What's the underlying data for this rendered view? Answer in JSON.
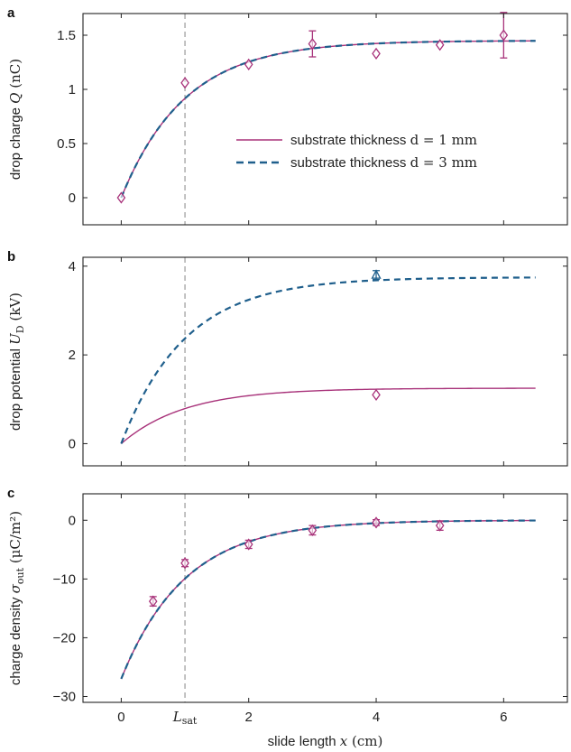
{
  "chart_data": [
    {
      "panel": "a",
      "type": "line",
      "ylabel_text": "drop charge",
      "ylabel_symbol": "Q",
      "ylabel_unit": "(nC)",
      "ylim": [
        -0.25,
        1.7
      ],
      "yticks": [
        0,
        0.5,
        1,
        1.5
      ],
      "ytick_labels": [
        "0",
        "0.5",
        "1",
        "1.5"
      ],
      "curves": [
        {
          "name": "substrate thickness d = 1 mm",
          "style": "solid",
          "color": "#a8327a",
          "amplitude": 1.45,
          "offset": 0
        },
        {
          "name": "substrate thickness d = 3 mm",
          "style": "dashed",
          "color": "#1f5f8c",
          "amplitude": 1.45,
          "offset": 0
        }
      ],
      "points": [
        {
          "x": 0,
          "y": 0.0,
          "err": 0,
          "color": "#a8327a"
        },
        {
          "x": 1,
          "y": 1.06,
          "err": 0,
          "color": "#a8327a"
        },
        {
          "x": 2,
          "y": 1.23,
          "err": 0,
          "color": "#a8327a"
        },
        {
          "x": 3,
          "y": 1.42,
          "err": 0.12,
          "color": "#a8327a"
        },
        {
          "x": 4,
          "y": 1.33,
          "err": 0,
          "color": "#a8327a"
        },
        {
          "x": 5,
          "y": 1.41,
          "err": 0,
          "color": "#a8327a"
        },
        {
          "x": 6,
          "y": 1.5,
          "err": 0.21,
          "color": "#a8327a"
        }
      ],
      "legend": {
        "placement": "center-right",
        "entries": [
          {
            "text": "substrate thickness ",
            "math": "d = 1 mm",
            "style": "solid",
            "color": "#a8327a"
          },
          {
            "text": "substrate thickness ",
            "math": "d = 3 mm",
            "style": "dashed",
            "color": "#1f5f8c"
          }
        ]
      }
    },
    {
      "panel": "b",
      "type": "line",
      "ylabel_text": "drop potential",
      "ylabel_symbol": "U",
      "ylabel_sub": "D",
      "ylabel_unit": "(kV)",
      "ylim": [
        -0.5,
        4.2
      ],
      "yticks": [
        0,
        2,
        4
      ],
      "ytick_labels": [
        "0",
        "2",
        "4"
      ],
      "curves": [
        {
          "name": "substrate thickness d = 1 mm",
          "style": "solid",
          "color": "#a8327a",
          "amplitude": 1.25,
          "offset": 0
        },
        {
          "name": "substrate thickness d = 3 mm",
          "style": "dashed",
          "color": "#1f5f8c",
          "amplitude": 3.75,
          "offset": 0
        }
      ],
      "points": [
        {
          "x": 4,
          "y": 1.1,
          "err": 0,
          "color": "#a8327a",
          "marker": "diamond"
        },
        {
          "x": 4,
          "y": 3.8,
          "err": 0.1,
          "color": "#1f5f8c",
          "marker": "triangle"
        }
      ]
    },
    {
      "panel": "c",
      "type": "line",
      "ylabel_text": "charge density",
      "ylabel_symbol": "σ",
      "ylabel_sub": "out",
      "ylabel_unit": "(μC/m²)",
      "ylim": [
        -31,
        4.5
      ],
      "yticks": [
        -30,
        -20,
        -10,
        0
      ],
      "ytick_labels": [
        "−30",
        "−20",
        "−10",
        "0"
      ],
      "curves": [
        {
          "name": "substrate thickness d = 1 mm",
          "style": "solid",
          "color": "#a8327a",
          "amplitude": 27,
          "offset": -27
        },
        {
          "name": "substrate thickness d = 3 mm",
          "style": "dashed",
          "color": "#1f5f8c",
          "amplitude": 27,
          "offset": -27
        }
      ],
      "points": [
        {
          "x": 0.5,
          "y": -13.8,
          "err": 0.8,
          "color": "#a8327a"
        },
        {
          "x": 1,
          "y": -7.3,
          "err": 0.6,
          "color": "#a8327a"
        },
        {
          "x": 2,
          "y": -4.1,
          "err": 0.7,
          "color": "#a8327a"
        },
        {
          "x": 3,
          "y": -1.7,
          "err": 0.8,
          "color": "#a8327a"
        },
        {
          "x": 4,
          "y": -0.4,
          "err": 0.5,
          "color": "#a8327a"
        },
        {
          "x": 5,
          "y": -0.9,
          "err": 0.8,
          "color": "#a8327a"
        }
      ]
    }
  ],
  "shared": {
    "xlim": [
      -0.6,
      7.0
    ],
    "xticks": [
      0,
      2,
      4,
      6
    ],
    "xtick_labels": [
      "0",
      "2",
      "4",
      "6"
    ],
    "xlabel_text": "slide length",
    "xlabel_symbol": "x",
    "xlabel_unit": "(cm)",
    "x_max_curve": 6.5,
    "decay_length": 1.0,
    "lsat_x": 1.0,
    "lsat_label": "L",
    "lsat_sub": "sat",
    "grid": false,
    "colors": {
      "solid": "#a8327a",
      "dashed": "#1f5f8c",
      "guide": "#9a9a9a"
    }
  }
}
